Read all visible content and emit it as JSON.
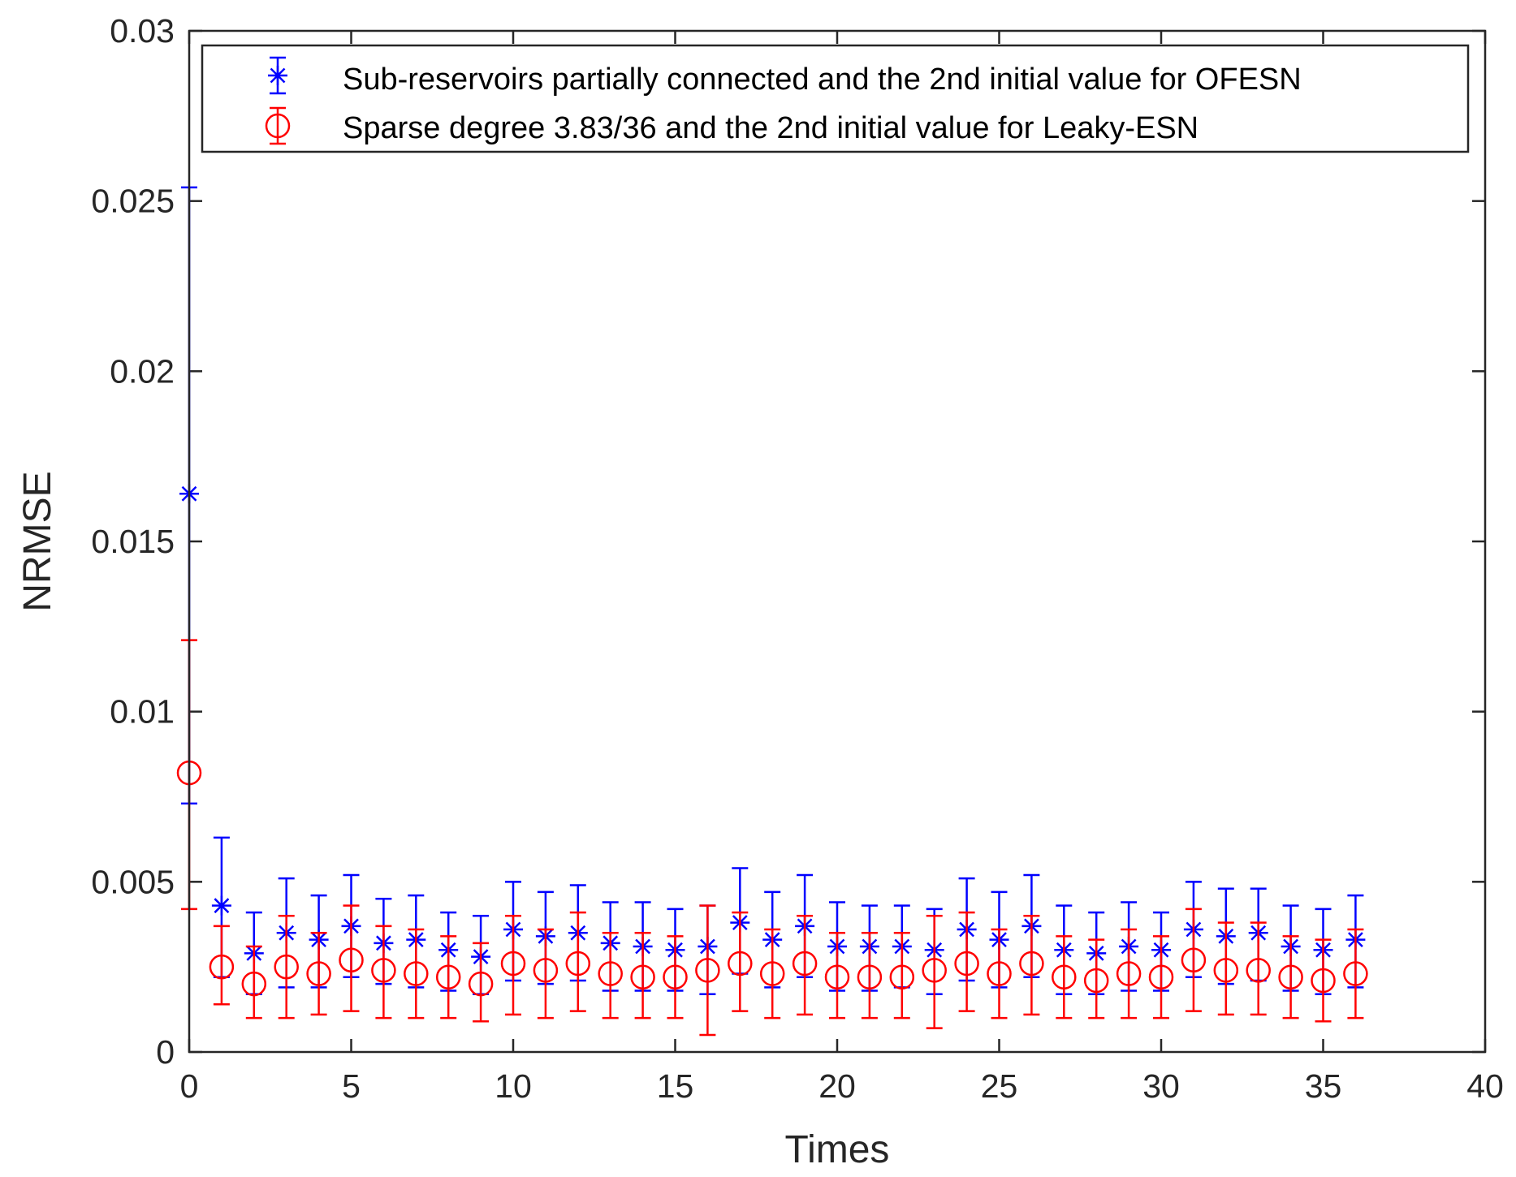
{
  "chart_data": {
    "type": "errorbar",
    "title": "",
    "xlabel": "Times",
    "ylabel": "NRMSE",
    "xlim": [
      0,
      40
    ],
    "ylim": [
      0,
      0.03
    ],
    "xticks": [
      0,
      5,
      10,
      15,
      20,
      25,
      30,
      35,
      40
    ],
    "xtick_labels": [
      "0",
      "5",
      "10",
      "15",
      "20",
      "25",
      "30",
      "35",
      "40"
    ],
    "yticks": [
      0,
      0.005,
      0.01,
      0.015,
      0.02,
      0.025,
      0.03
    ],
    "ytick_labels": [
      "0",
      "0.005",
      "0.01",
      "0.015",
      "0.02",
      "0.025",
      "0.03"
    ],
    "grid": false,
    "legend_position": "top",
    "x": [
      0,
      1,
      2,
      3,
      4,
      5,
      6,
      7,
      8,
      9,
      10,
      11,
      12,
      13,
      14,
      15,
      16,
      17,
      18,
      19,
      20,
      21,
      22,
      23,
      24,
      25,
      26,
      27,
      28,
      29,
      30,
      31,
      32,
      33,
      34,
      35,
      36
    ],
    "series": [
      {
        "name": "Sub-reservoirs partially connected and the 2nd initial value for OFESN",
        "color": "#0000ff",
        "marker": "asterisk",
        "values": [
          0.0164,
          0.0043,
          0.0029,
          0.0035,
          0.0033,
          0.0037,
          0.0032,
          0.0033,
          0.003,
          0.0028,
          0.0036,
          0.0034,
          0.0035,
          0.0032,
          0.0031,
          0.003,
          0.0031,
          0.0038,
          0.0033,
          0.0037,
          0.0031,
          0.0031,
          0.0031,
          0.003,
          0.0036,
          0.0033,
          0.0037,
          0.003,
          0.0029,
          0.0031,
          0.003,
          0.0036,
          0.0034,
          0.0035,
          0.0031,
          0.003,
          0.0033
        ],
        "upper": [
          0.0254,
          0.0063,
          0.0041,
          0.0051,
          0.0046,
          0.0052,
          0.0045,
          0.0046,
          0.0041,
          0.004,
          0.005,
          0.0047,
          0.0049,
          0.0044,
          0.0044,
          0.0042,
          0.0043,
          0.0054,
          0.0047,
          0.0052,
          0.0044,
          0.0043,
          0.0043,
          0.0042,
          0.0051,
          0.0047,
          0.0052,
          0.0043,
          0.0041,
          0.0044,
          0.0041,
          0.005,
          0.0048,
          0.0048,
          0.0043,
          0.0042,
          0.0046
        ],
        "lower": [
          0.0073,
          0.0022,
          0.0017,
          0.0019,
          0.0019,
          0.0022,
          0.002,
          0.0019,
          0.0018,
          0.0017,
          0.0021,
          0.002,
          0.0021,
          0.0018,
          0.0018,
          0.0018,
          0.0017,
          0.0023,
          0.0019,
          0.0022,
          0.0018,
          0.0018,
          0.0019,
          0.0017,
          0.0021,
          0.0019,
          0.0022,
          0.0017,
          0.0017,
          0.0018,
          0.0018,
          0.0022,
          0.002,
          0.0021,
          0.0018,
          0.0017,
          0.0019
        ]
      },
      {
        "name": "Sparse degree 3.83/36 and the 2nd initial value for Leaky-ESN",
        "color": "#ff0000",
        "marker": "circle",
        "values": [
          0.0082,
          0.0025,
          0.002,
          0.0025,
          0.0023,
          0.0027,
          0.0024,
          0.0023,
          0.0022,
          0.002,
          0.0026,
          0.0024,
          0.0026,
          0.0023,
          0.0022,
          0.0022,
          0.0024,
          0.0026,
          0.0023,
          0.0026,
          0.0022,
          0.0022,
          0.0022,
          0.0024,
          0.0026,
          0.0023,
          0.0026,
          0.0022,
          0.0021,
          0.0023,
          0.0022,
          0.0027,
          0.0024,
          0.0024,
          0.0022,
          0.0021,
          0.0023
        ],
        "upper": [
          0.0121,
          0.0037,
          0.0031,
          0.004,
          0.0035,
          0.0043,
          0.0037,
          0.0036,
          0.0034,
          0.0032,
          0.004,
          0.0036,
          0.0041,
          0.0035,
          0.0035,
          0.0034,
          0.0043,
          0.0041,
          0.0036,
          0.004,
          0.0035,
          0.0035,
          0.0035,
          0.004,
          0.0041,
          0.0036,
          0.004,
          0.0034,
          0.0033,
          0.0036,
          0.0034,
          0.0042,
          0.0038,
          0.0038,
          0.0034,
          0.0033,
          0.0036
        ],
        "lower": [
          0.0042,
          0.0014,
          0.001,
          0.001,
          0.0011,
          0.0012,
          0.001,
          0.001,
          0.001,
          0.0009,
          0.0011,
          0.001,
          0.0012,
          0.001,
          0.001,
          0.001,
          0.0005,
          0.0012,
          0.001,
          0.0011,
          0.001,
          0.001,
          0.001,
          0.0007,
          0.0012,
          0.001,
          0.0011,
          0.001,
          0.001,
          0.001,
          0.001,
          0.0012,
          0.0011,
          0.0011,
          0.001,
          0.0009,
          0.001
        ]
      }
    ]
  }
}
